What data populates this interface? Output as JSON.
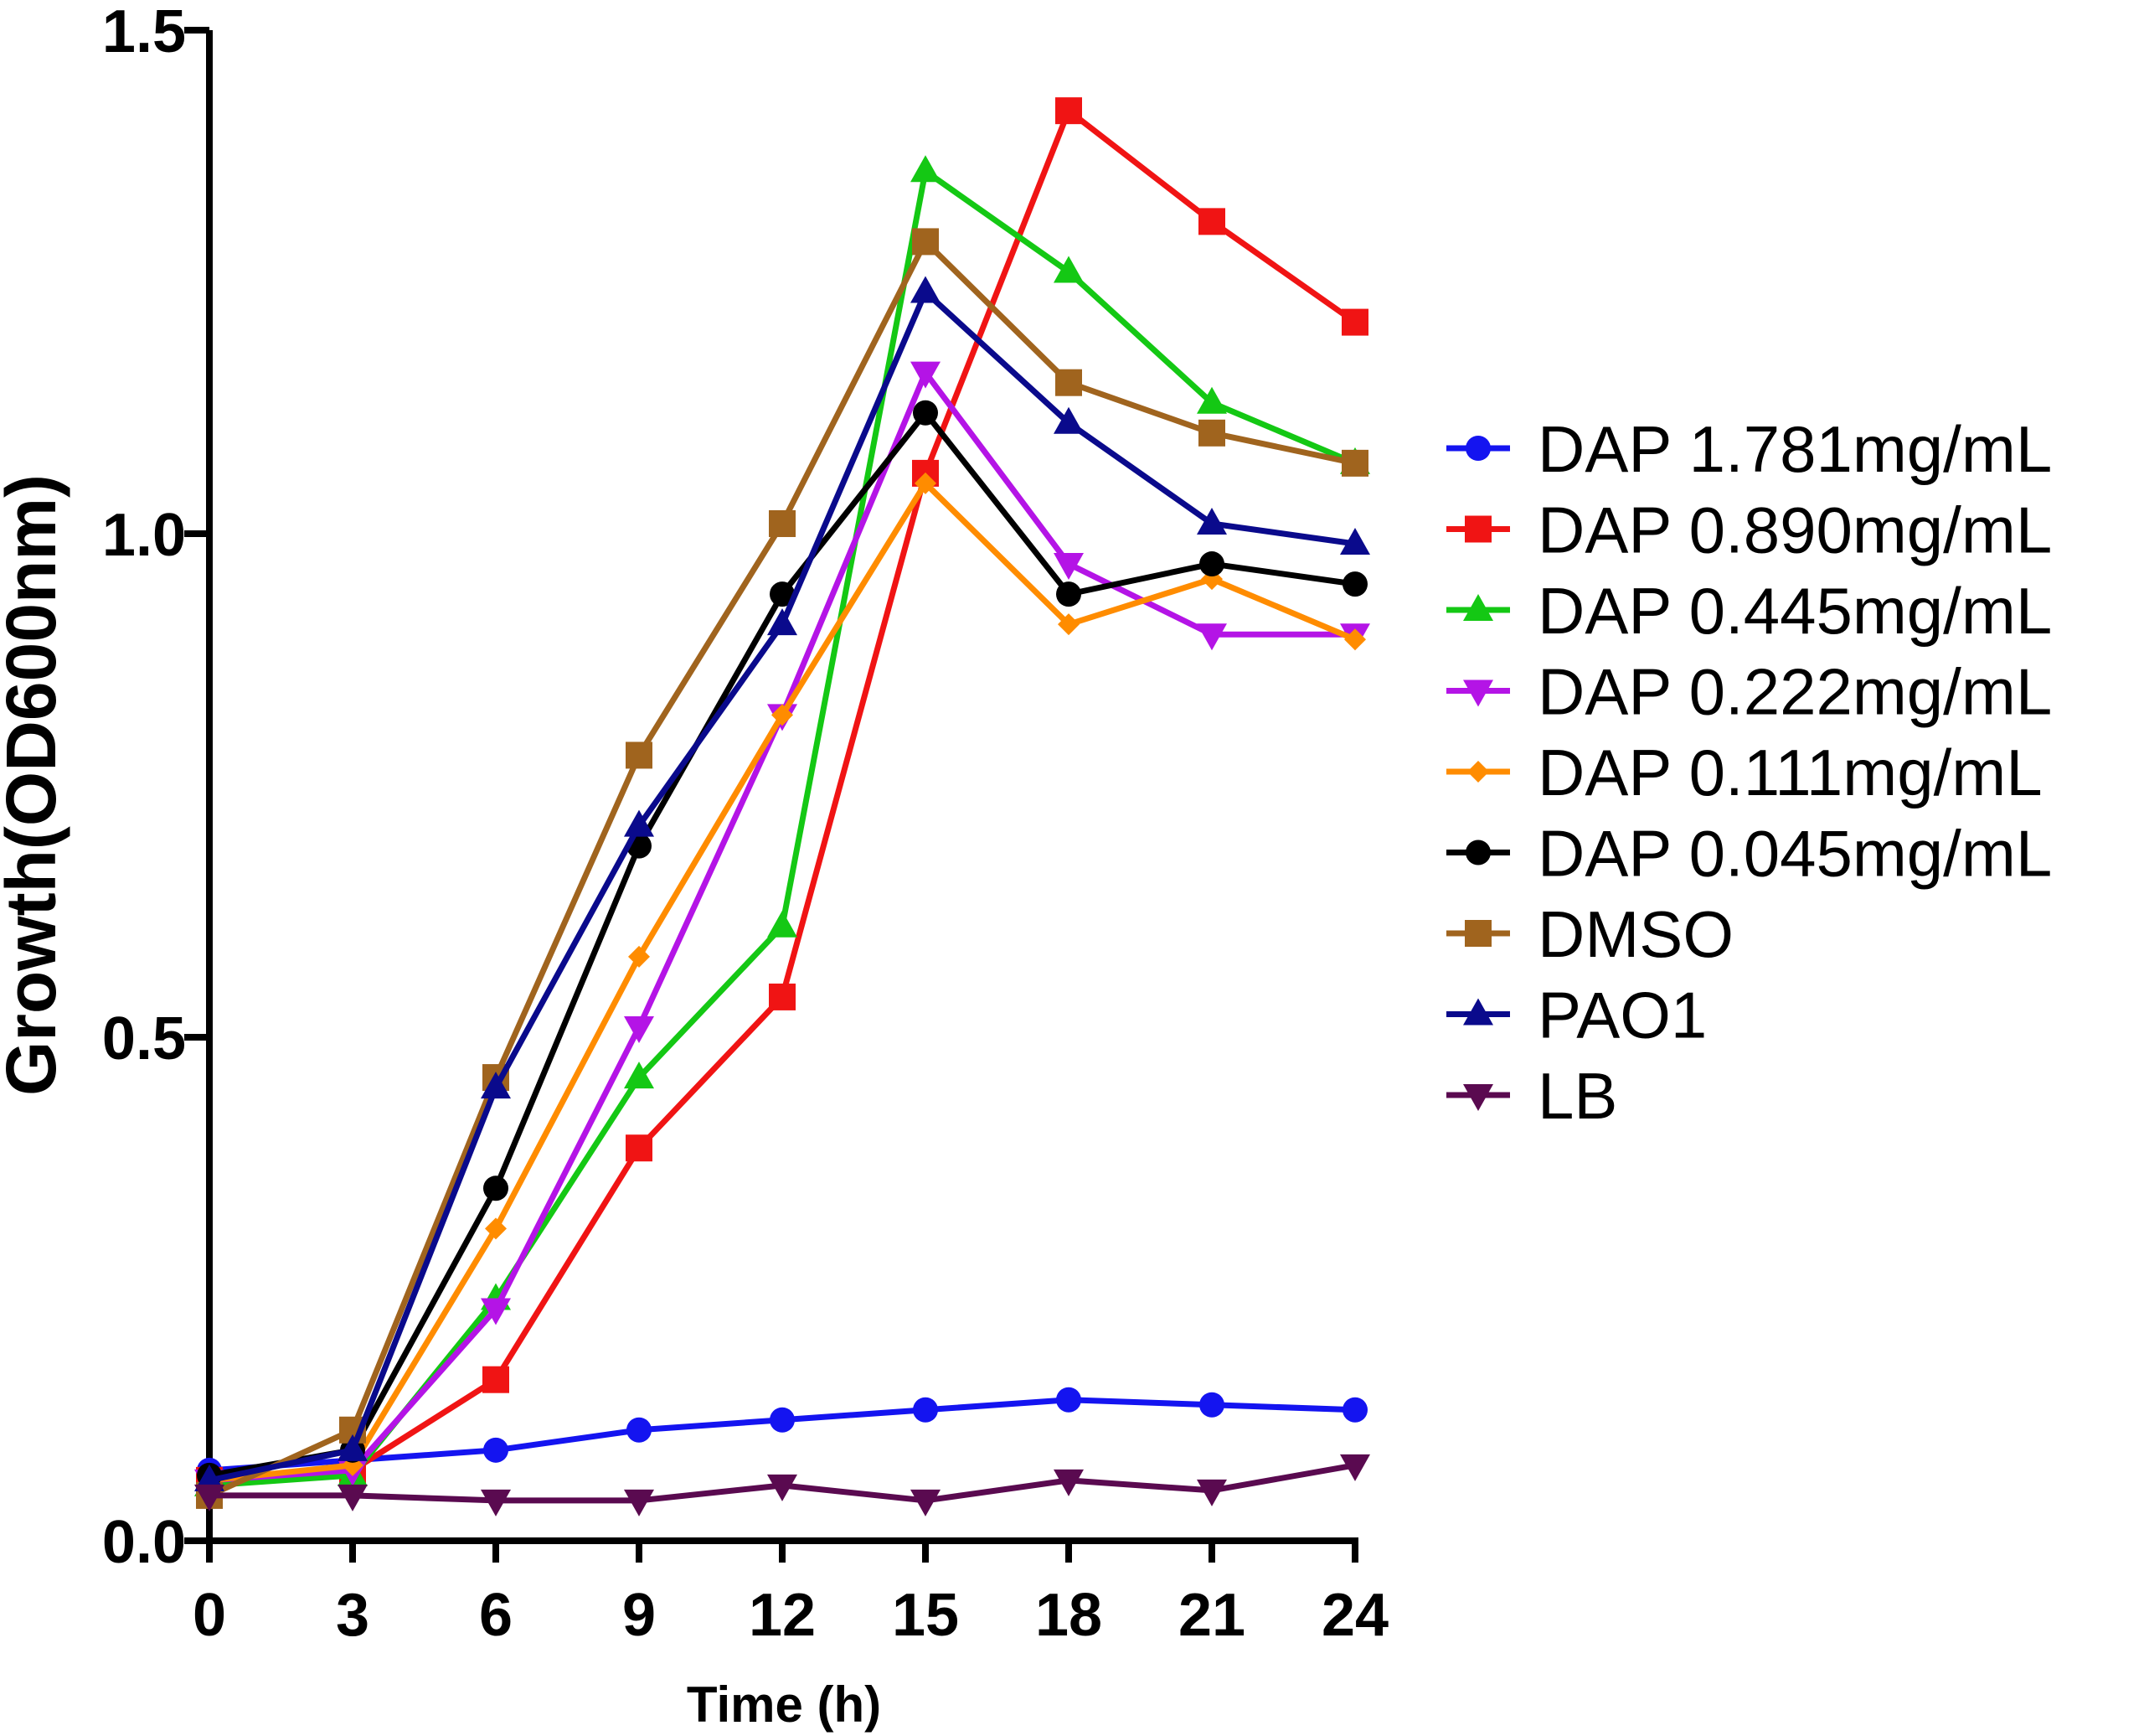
{
  "chart_data": {
    "type": "line",
    "title": "",
    "xlabel": "Time (h)",
    "ylabel": "Growth(OD600nm)",
    "x": [
      0,
      3,
      6,
      9,
      12,
      15,
      18,
      21,
      24
    ],
    "xlim": [
      0,
      24
    ],
    "ylim": [
      0,
      1.5
    ],
    "xticks": [
      "0",
      "3",
      "6",
      "9",
      "12",
      "15",
      "18",
      "21",
      "24"
    ],
    "yticks": [
      "0.0",
      "0.5",
      "1.0",
      "1.5"
    ],
    "legend_position": "right",
    "series": [
      {
        "name": "DAP 1.781mg/mL",
        "color": "#1414f0",
        "marker": "circle",
        "values": [
          0.07,
          0.08,
          0.09,
          0.11,
          0.12,
          0.13,
          0.14,
          0.135,
          0.13
        ]
      },
      {
        "name": "DAP 0.890mg/mL",
        "color": "#f01414",
        "marker": "square",
        "values": [
          0.06,
          0.07,
          0.16,
          0.39,
          0.54,
          1.06,
          1.42,
          1.31,
          1.21
        ]
      },
      {
        "name": "DAP 0.445mg/mL",
        "color": "#14c814",
        "marker": "triangle-up",
        "values": [
          0.055,
          0.065,
          0.24,
          0.46,
          0.61,
          1.36,
          1.26,
          1.13,
          1.07
        ]
      },
      {
        "name": "DAP 0.222mg/mL",
        "color": "#b414e6",
        "marker": "triangle-down",
        "values": [
          0.06,
          0.07,
          0.23,
          0.51,
          0.82,
          1.16,
          0.97,
          0.9,
          0.9
        ]
      },
      {
        "name": "DAP 0.111mg/mL",
        "color": "#ff8c00",
        "marker": "diamond",
        "values": [
          0.06,
          0.075,
          0.31,
          0.58,
          0.82,
          1.05,
          0.91,
          0.955,
          0.895
        ]
      },
      {
        "name": "DAP 0.045mg/mL",
        "color": "#000000",
        "marker": "circle",
        "values": [
          0.065,
          0.09,
          0.35,
          0.69,
          0.94,
          1.12,
          0.94,
          0.97,
          0.95
        ]
      },
      {
        "name": "DMSO",
        "color": "#a0641e",
        "marker": "square",
        "values": [
          0.045,
          0.11,
          0.46,
          0.78,
          1.01,
          1.29,
          1.15,
          1.1,
          1.07
        ]
      },
      {
        "name": "PAO1",
        "color": "#0a0a8c",
        "marker": "triangle-up",
        "values": [
          0.06,
          0.09,
          0.45,
          0.71,
          0.91,
          1.24,
          1.11,
          1.01,
          0.99
        ]
      },
      {
        "name": "LB",
        "color": "#5a0a50",
        "marker": "triangle-down",
        "values": [
          0.045,
          0.045,
          0.04,
          0.04,
          0.055,
          0.04,
          0.06,
          0.05,
          0.075
        ]
      }
    ]
  }
}
